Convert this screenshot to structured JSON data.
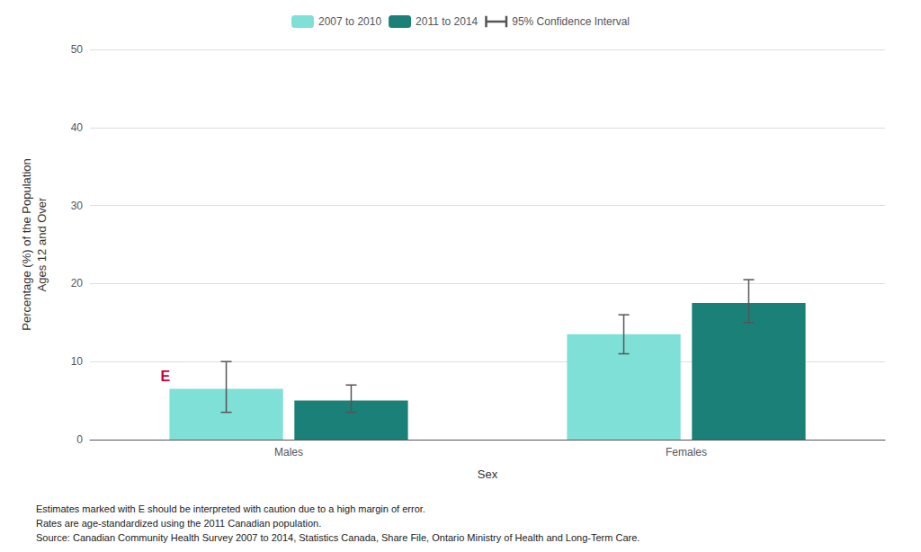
{
  "chart_data": {
    "type": "bar",
    "categories": [
      "Males",
      "Females"
    ],
    "series": [
      {
        "name": "2007 to 2010",
        "color": "#7fe0d8",
        "values": [
          6.5,
          13.5
        ],
        "ci_lower": [
          3.5,
          11.0
        ],
        "ci_upper": [
          10.0,
          16.0
        ]
      },
      {
        "name": "2011 to 2014",
        "color": "#1a8078",
        "values": [
          5.0,
          17.5
        ],
        "ci_lower": [
          3.5,
          15.0
        ],
        "ci_upper": [
          7.0,
          20.5
        ]
      }
    ],
    "error_bars": {
      "name": "95% Confidence Interval",
      "color": "#555555"
    },
    "annotations": [
      {
        "text": "E",
        "color": "#cc0033",
        "category": "Males",
        "series": "2007 to 2010"
      }
    ],
    "xlabel": "Sex",
    "ylabel": "Percentage (%) of the Population\nAges 12 and Over",
    "ylim": [
      0,
      50
    ],
    "yticks": [
      0,
      10,
      20,
      30,
      40,
      50
    ],
    "grid": true,
    "legend": "top",
    "footnotes": [
      "Estimates marked with E should be interpreted with caution due to a high margin of error.",
      "Rates are age-standardized using the 2011 Canadian population.",
      "Source: Canadian Community Health Survey 2007 to 2014, Statistics Canada, Share File, Ontario Ministry of Health and Long-Term Care."
    ]
  }
}
